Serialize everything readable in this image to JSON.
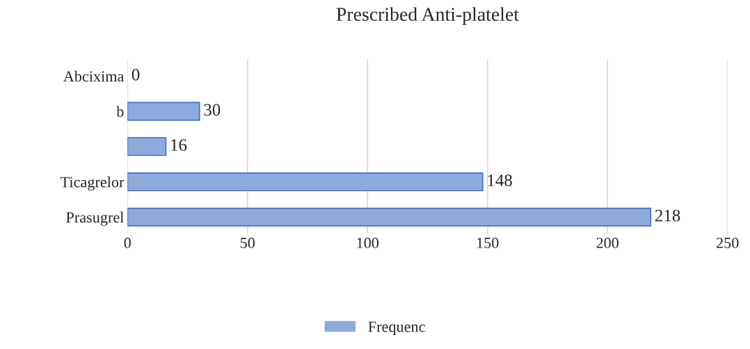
{
  "chart_data": {
    "type": "bar",
    "orientation": "horizontal",
    "title": "Prescribed Anti-platelet",
    "categories": [
      "Abcixima",
      "b",
      null,
      "Ticagrelor",
      "Prasugrel"
    ],
    "series": [
      {
        "name": "Frequenc",
        "color": "#8faadc",
        "values": [
          0,
          30,
          16,
          148,
          218
        ]
      }
    ],
    "xlim": [
      0,
      250
    ],
    "xticks": [
      0,
      50,
      100,
      150,
      200,
      250
    ],
    "grid": "x",
    "legend": "bottom",
    "data_labels": true
  }
}
